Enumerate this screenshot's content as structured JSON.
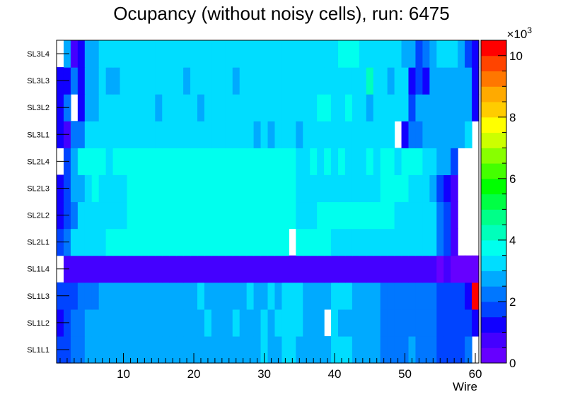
{
  "chart_data": {
    "type": "heatmap",
    "title": "Ocupancy (without noisy cells), run: 6475",
    "xlabel": "Wire",
    "ylabel": "",
    "x_ticks": [
      "10",
      "20",
      "30",
      "40",
      "50",
      "60"
    ],
    "xlim": [
      0.5,
      60.5
    ],
    "z_ticks": [
      "0",
      "2",
      "4",
      "6",
      "8",
      "10"
    ],
    "z_multiplier": "×10",
    "z_multiplier_exp": "3",
    "zlim": [
      0,
      10500
    ],
    "palette": [
      "#6600ff",
      "#4400ff",
      "#1100ff",
      "#0044ff",
      "#0077ff",
      "#00aaff",
      "#00ddff",
      "#00ffee",
      "#00ffbb",
      "#00ff88",
      "#00ff44",
      "#00ff00",
      "#44ff00",
      "#88ff00",
      "#ccff00",
      "#ffff00",
      "#ffcc00",
      "#ffaa00",
      "#ff7700",
      "#ff4400",
      "#ff0000"
    ],
    "layers": [
      "SL1L1",
      "SL1L2",
      "SL1L3",
      "SL1L4",
      "SL2L1",
      "SL2L2",
      "SL2L3",
      "SL2L4",
      "SL3L1",
      "SL3L2",
      "SL3L3",
      "SL3L4"
    ],
    "values": [
      [
        1500,
        1500,
        2000,
        2000,
        2500,
        2500,
        2500,
        2500,
        2500,
        2500,
        2500,
        2500,
        2500,
        2500,
        2500,
        2500,
        2500,
        2500,
        2500,
        2500,
        2500,
        2500,
        2500,
        2500,
        2500,
        2500,
        2500,
        2500,
        2500,
        3000,
        2500,
        2500,
        3000,
        3000,
        2500,
        2500,
        2500,
        2500,
        2500,
        3000,
        3000,
        3000,
        2500,
        2500,
        2500,
        2500,
        2000,
        2000,
        2000,
        2000,
        2500,
        2000,
        2000,
        2000,
        1500,
        1500,
        1500,
        1500,
        2000,
        null
      ],
      [
        1000,
        1500,
        2000,
        2000,
        2500,
        2500,
        2500,
        2500,
        2500,
        2500,
        2500,
        2500,
        2500,
        2500,
        2500,
        2500,
        2500,
        2500,
        2500,
        2500,
        2500,
        3000,
        2500,
        2500,
        2500,
        3000,
        2500,
        2500,
        2500,
        3000,
        2500,
        3000,
        3000,
        3000,
        3000,
        2500,
        2500,
        2500,
        null,
        3000,
        2500,
        2500,
        2500,
        2500,
        2500,
        2500,
        2000,
        2000,
        2000,
        2000,
        2000,
        2000,
        2000,
        2000,
        1500,
        1500,
        1500,
        1500,
        1500,
        1000
      ],
      [
        1500,
        1500,
        1500,
        2000,
        2000,
        2000,
        2500,
        2500,
        2500,
        2500,
        2500,
        2500,
        2500,
        2500,
        2500,
        2500,
        2500,
        2500,
        2500,
        2500,
        3000,
        2500,
        2500,
        2500,
        2500,
        2500,
        2500,
        3000,
        2500,
        2500,
        3000,
        2500,
        3000,
        3000,
        3000,
        2500,
        2500,
        2500,
        2500,
        3000,
        3000,
        3000,
        2500,
        2500,
        2500,
        2500,
        2000,
        2000,
        2000,
        2000,
        2000,
        2000,
        2000,
        2000,
        1500,
        1500,
        1500,
        1500,
        1000,
        10500
      ],
      [
        null,
        500,
        500,
        500,
        500,
        500,
        500,
        500,
        500,
        800,
        800,
        800,
        500,
        500,
        500,
        500,
        500,
        500,
        500,
        500,
        500,
        500,
        500,
        500,
        500,
        500,
        500,
        500,
        500,
        500,
        500,
        500,
        500,
        800,
        800,
        800,
        500,
        800,
        800,
        500,
        800,
        500,
        800,
        500,
        800,
        500,
        500,
        500,
        500,
        500,
        500,
        500,
        500,
        500,
        300,
        500,
        300,
        300,
        300,
        300
      ],
      [
        1500,
        2000,
        3000,
        3000,
        3000,
        3000,
        3000,
        3500,
        3500,
        3500,
        3500,
        3500,
        3500,
        3500,
        3500,
        3500,
        3500,
        3500,
        3500,
        3500,
        3500,
        3500,
        3500,
        3500,
        3500,
        3500,
        3500,
        3500,
        3500,
        3500,
        3500,
        3500,
        3500,
        null,
        3500,
        3500,
        3500,
        3500,
        3500,
        3000,
        3000,
        3000,
        3000,
        3000,
        3000,
        3000,
        3000,
        3000,
        3000,
        3000,
        3000,
        3000,
        3000,
        3000,
        2000,
        1500,
        500,
        null,
        null,
        null
      ],
      [
        1000,
        1500,
        2000,
        3000,
        3000,
        3000,
        3000,
        3000,
        3000,
        3000,
        3500,
        3500,
        3500,
        3500,
        3500,
        3500,
        3500,
        3500,
        3500,
        3500,
        3500,
        3500,
        3500,
        3500,
        3500,
        3500,
        3500,
        3500,
        3500,
        3500,
        3500,
        3500,
        3500,
        3500,
        3000,
        3000,
        3000,
        3500,
        3500,
        3500,
        3500,
        3500,
        3500,
        3500,
        3500,
        3500,
        3500,
        3500,
        3000,
        3000,
        3000,
        3000,
        3000,
        3000,
        2000,
        1500,
        500,
        null,
        null,
        null
      ],
      [
        1000,
        1500,
        2500,
        2500,
        3000,
        3500,
        3000,
        3000,
        3000,
        3000,
        3500,
        3500,
        3500,
        3500,
        3500,
        3500,
        3500,
        3500,
        3500,
        3500,
        3500,
        3500,
        3500,
        3500,
        3500,
        3500,
        3500,
        3500,
        3500,
        3500,
        3500,
        3500,
        3500,
        3500,
        3000,
        3000,
        3000,
        3000,
        3000,
        3000,
        3000,
        3000,
        3000,
        3000,
        3000,
        3000,
        3500,
        3500,
        3500,
        3500,
        3000,
        3000,
        3000,
        2500,
        1500,
        1000,
        500,
        null,
        null,
        null
      ],
      [
        null,
        1500,
        2500,
        3500,
        3500,
        3500,
        3500,
        3000,
        3500,
        3500,
        3500,
        3500,
        3500,
        3500,
        3500,
        3500,
        3500,
        3500,
        3500,
        3500,
        3500,
        3500,
        3500,
        3500,
        3500,
        3500,
        3500,
        3500,
        3500,
        3500,
        3500,
        3500,
        3500,
        3500,
        3000,
        3000,
        3500,
        3000,
        3500,
        3000,
        3500,
        3000,
        3000,
        3000,
        3500,
        3000,
        3500,
        3500,
        3000,
        3500,
        3500,
        3500,
        3000,
        3000,
        2500,
        2500,
        1500,
        null,
        null,
        null
      ],
      [
        1000,
        500,
        2000,
        2000,
        3000,
        3000,
        3000,
        3000,
        3000,
        3000,
        3000,
        3000,
        3000,
        3000,
        3000,
        3000,
        3000,
        3000,
        3000,
        3000,
        3000,
        3000,
        3000,
        3000,
        3000,
        3000,
        3000,
        3000,
        2500,
        3000,
        2500,
        3000,
        3000,
        3000,
        2500,
        3000,
        3000,
        3000,
        3000,
        3000,
        3000,
        3000,
        3000,
        3000,
        3000,
        3000,
        3000,
        3000,
        null,
        1000,
        2000,
        2000,
        2500,
        2500,
        2500,
        2500,
        2500,
        2500,
        3000,
        null
      ],
      [
        1000,
        2000,
        null,
        1000,
        2500,
        2500,
        3000,
        3000,
        3000,
        3000,
        3000,
        3000,
        3000,
        3000,
        2500,
        3000,
        3000,
        3000,
        3000,
        3000,
        2500,
        3000,
        3000,
        3000,
        3000,
        3000,
        3000,
        3000,
        3000,
        3000,
        3000,
        3000,
        3000,
        3000,
        3000,
        3000,
        3000,
        3500,
        3500,
        3000,
        3000,
        3500,
        3000,
        3000,
        2500,
        3000,
        3000,
        3000,
        3000,
        3000,
        1500,
        2500,
        2500,
        2500,
        2500,
        2500,
        2500,
        2500,
        2500,
        1000
      ],
      [
        1000,
        1000,
        2000,
        1000,
        2500,
        2500,
        3000,
        2500,
        2500,
        3000,
        3000,
        3000,
        3000,
        3000,
        3000,
        3000,
        3000,
        3000,
        2500,
        3000,
        3000,
        3000,
        3000,
        3000,
        3000,
        2500,
        3000,
        3000,
        3000,
        3000,
        3000,
        3000,
        3000,
        3000,
        3000,
        3000,
        3000,
        3000,
        3000,
        3000,
        3000,
        3000,
        3000,
        3000,
        4000,
        3000,
        3000,
        2500,
        3000,
        3000,
        1000,
        1500,
        1000,
        2500,
        2500,
        2500,
        2500,
        2500,
        2500,
        1000
      ],
      [
        null,
        2500,
        500,
        1000,
        2500,
        2500,
        3000,
        3000,
        3000,
        3000,
        3000,
        3000,
        3000,
        3000,
        3000,
        3000,
        3000,
        3000,
        3000,
        3000,
        3000,
        3000,
        3000,
        3000,
        3000,
        3000,
        3000,
        3000,
        3000,
        3000,
        3000,
        3000,
        3000,
        3000,
        3000,
        3000,
        3000,
        3000,
        3000,
        3000,
        3500,
        3500,
        3500,
        3000,
        3000,
        3000,
        3000,
        3000,
        3000,
        2500,
        2500,
        1500,
        2000,
        2500,
        3000,
        3000,
        3000,
        2500,
        1500,
        1000
      ]
    ]
  }
}
